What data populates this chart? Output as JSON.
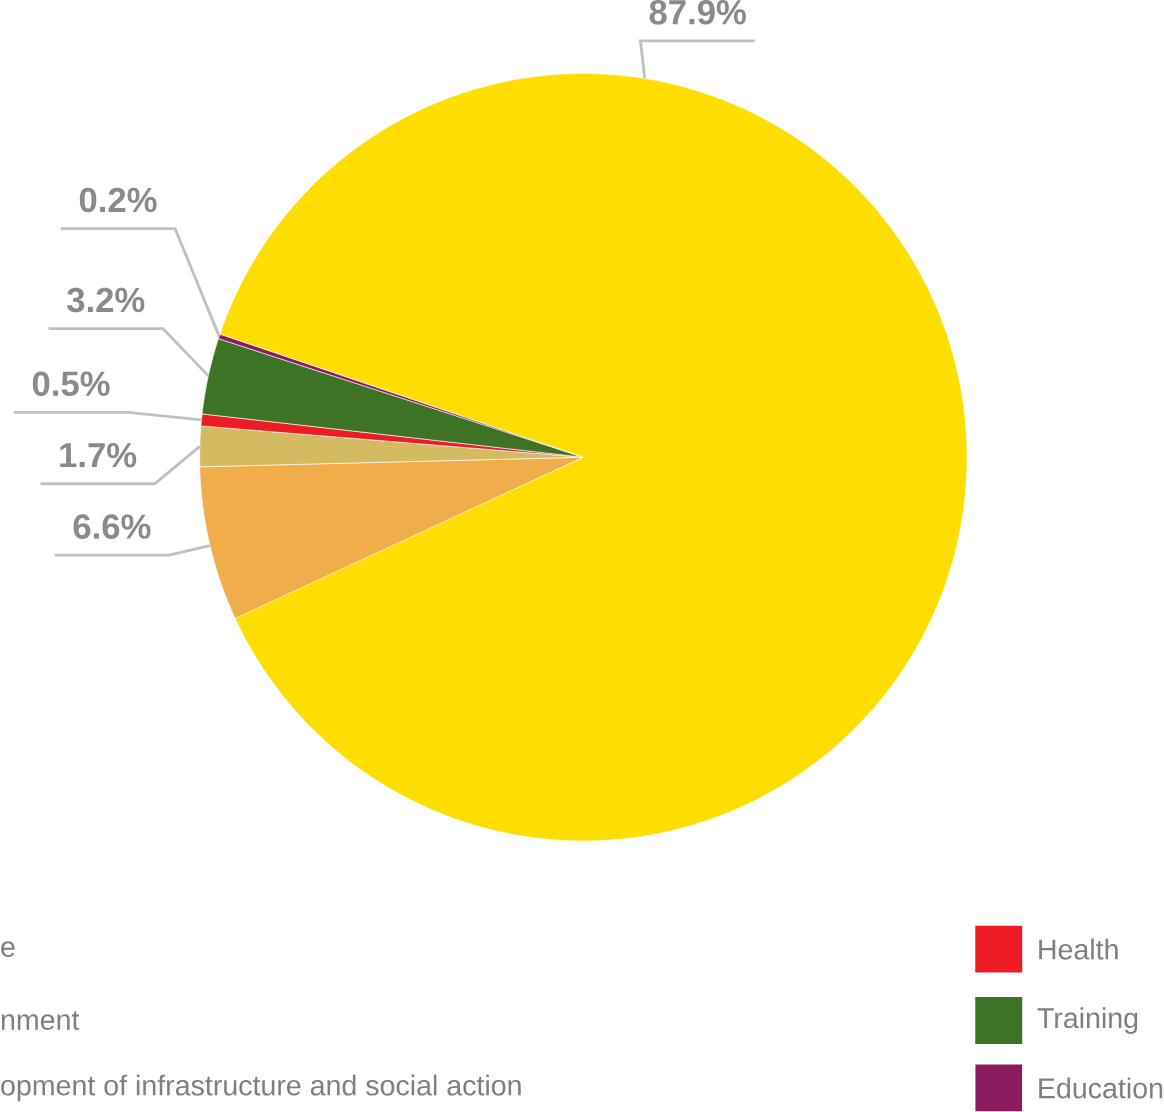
{
  "chart_data": {
    "type": "pie",
    "categories": [
      null,
      null,
      "Health",
      "Training",
      "Education",
      null
    ],
    "values": [
      6.6,
      1.7,
      0.5,
      3.2,
      0.2,
      87.9
    ],
    "value_labels": [
      "6.6%",
      "1.7%",
      "0.5%",
      "3.2%",
      "0.2%",
      "87.9%"
    ],
    "colors": [
      "#f2ad4b",
      "#d4bb62",
      "#ed1c24",
      "#3e7325",
      "#8c1a5e",
      "#fedd00"
    ],
    "legend": "bottom right",
    "annotations": [
      "e",
      "nment",
      "opment of infrastructure and social action"
    ]
  }
}
